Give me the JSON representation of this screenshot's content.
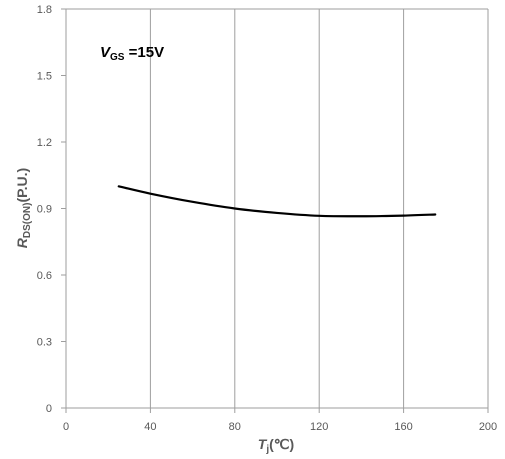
{
  "chart_data": {
    "type": "line",
    "xlabel": {
      "main": "T",
      "sub": "j",
      "suffix": "(℃)"
    },
    "ylabel": {
      "main": "R",
      "sub": "DS(ON)",
      "suffix": "(P.U.)"
    },
    "annotation": {
      "main": "V",
      "sub": "GS",
      "suffix": " =15V"
    },
    "xlim": [
      0,
      200
    ],
    "ylim": [
      0,
      1.8
    ],
    "xticks": [
      "0",
      "40",
      "80",
      "120",
      "160",
      "200"
    ],
    "yticks": [
      "0",
      "0.3",
      "0.6",
      "0.9",
      "1.2",
      "1.5",
      "1.8"
    ],
    "grid": true,
    "series": [
      {
        "color": "#000000",
        "x": [
          25,
          40,
          60,
          80,
          100,
          120,
          140,
          160,
          175
        ],
        "y": [
          1.0,
          0.967,
          0.93,
          0.9,
          0.88,
          0.867,
          0.865,
          0.868,
          0.873
        ]
      }
    ]
  }
}
